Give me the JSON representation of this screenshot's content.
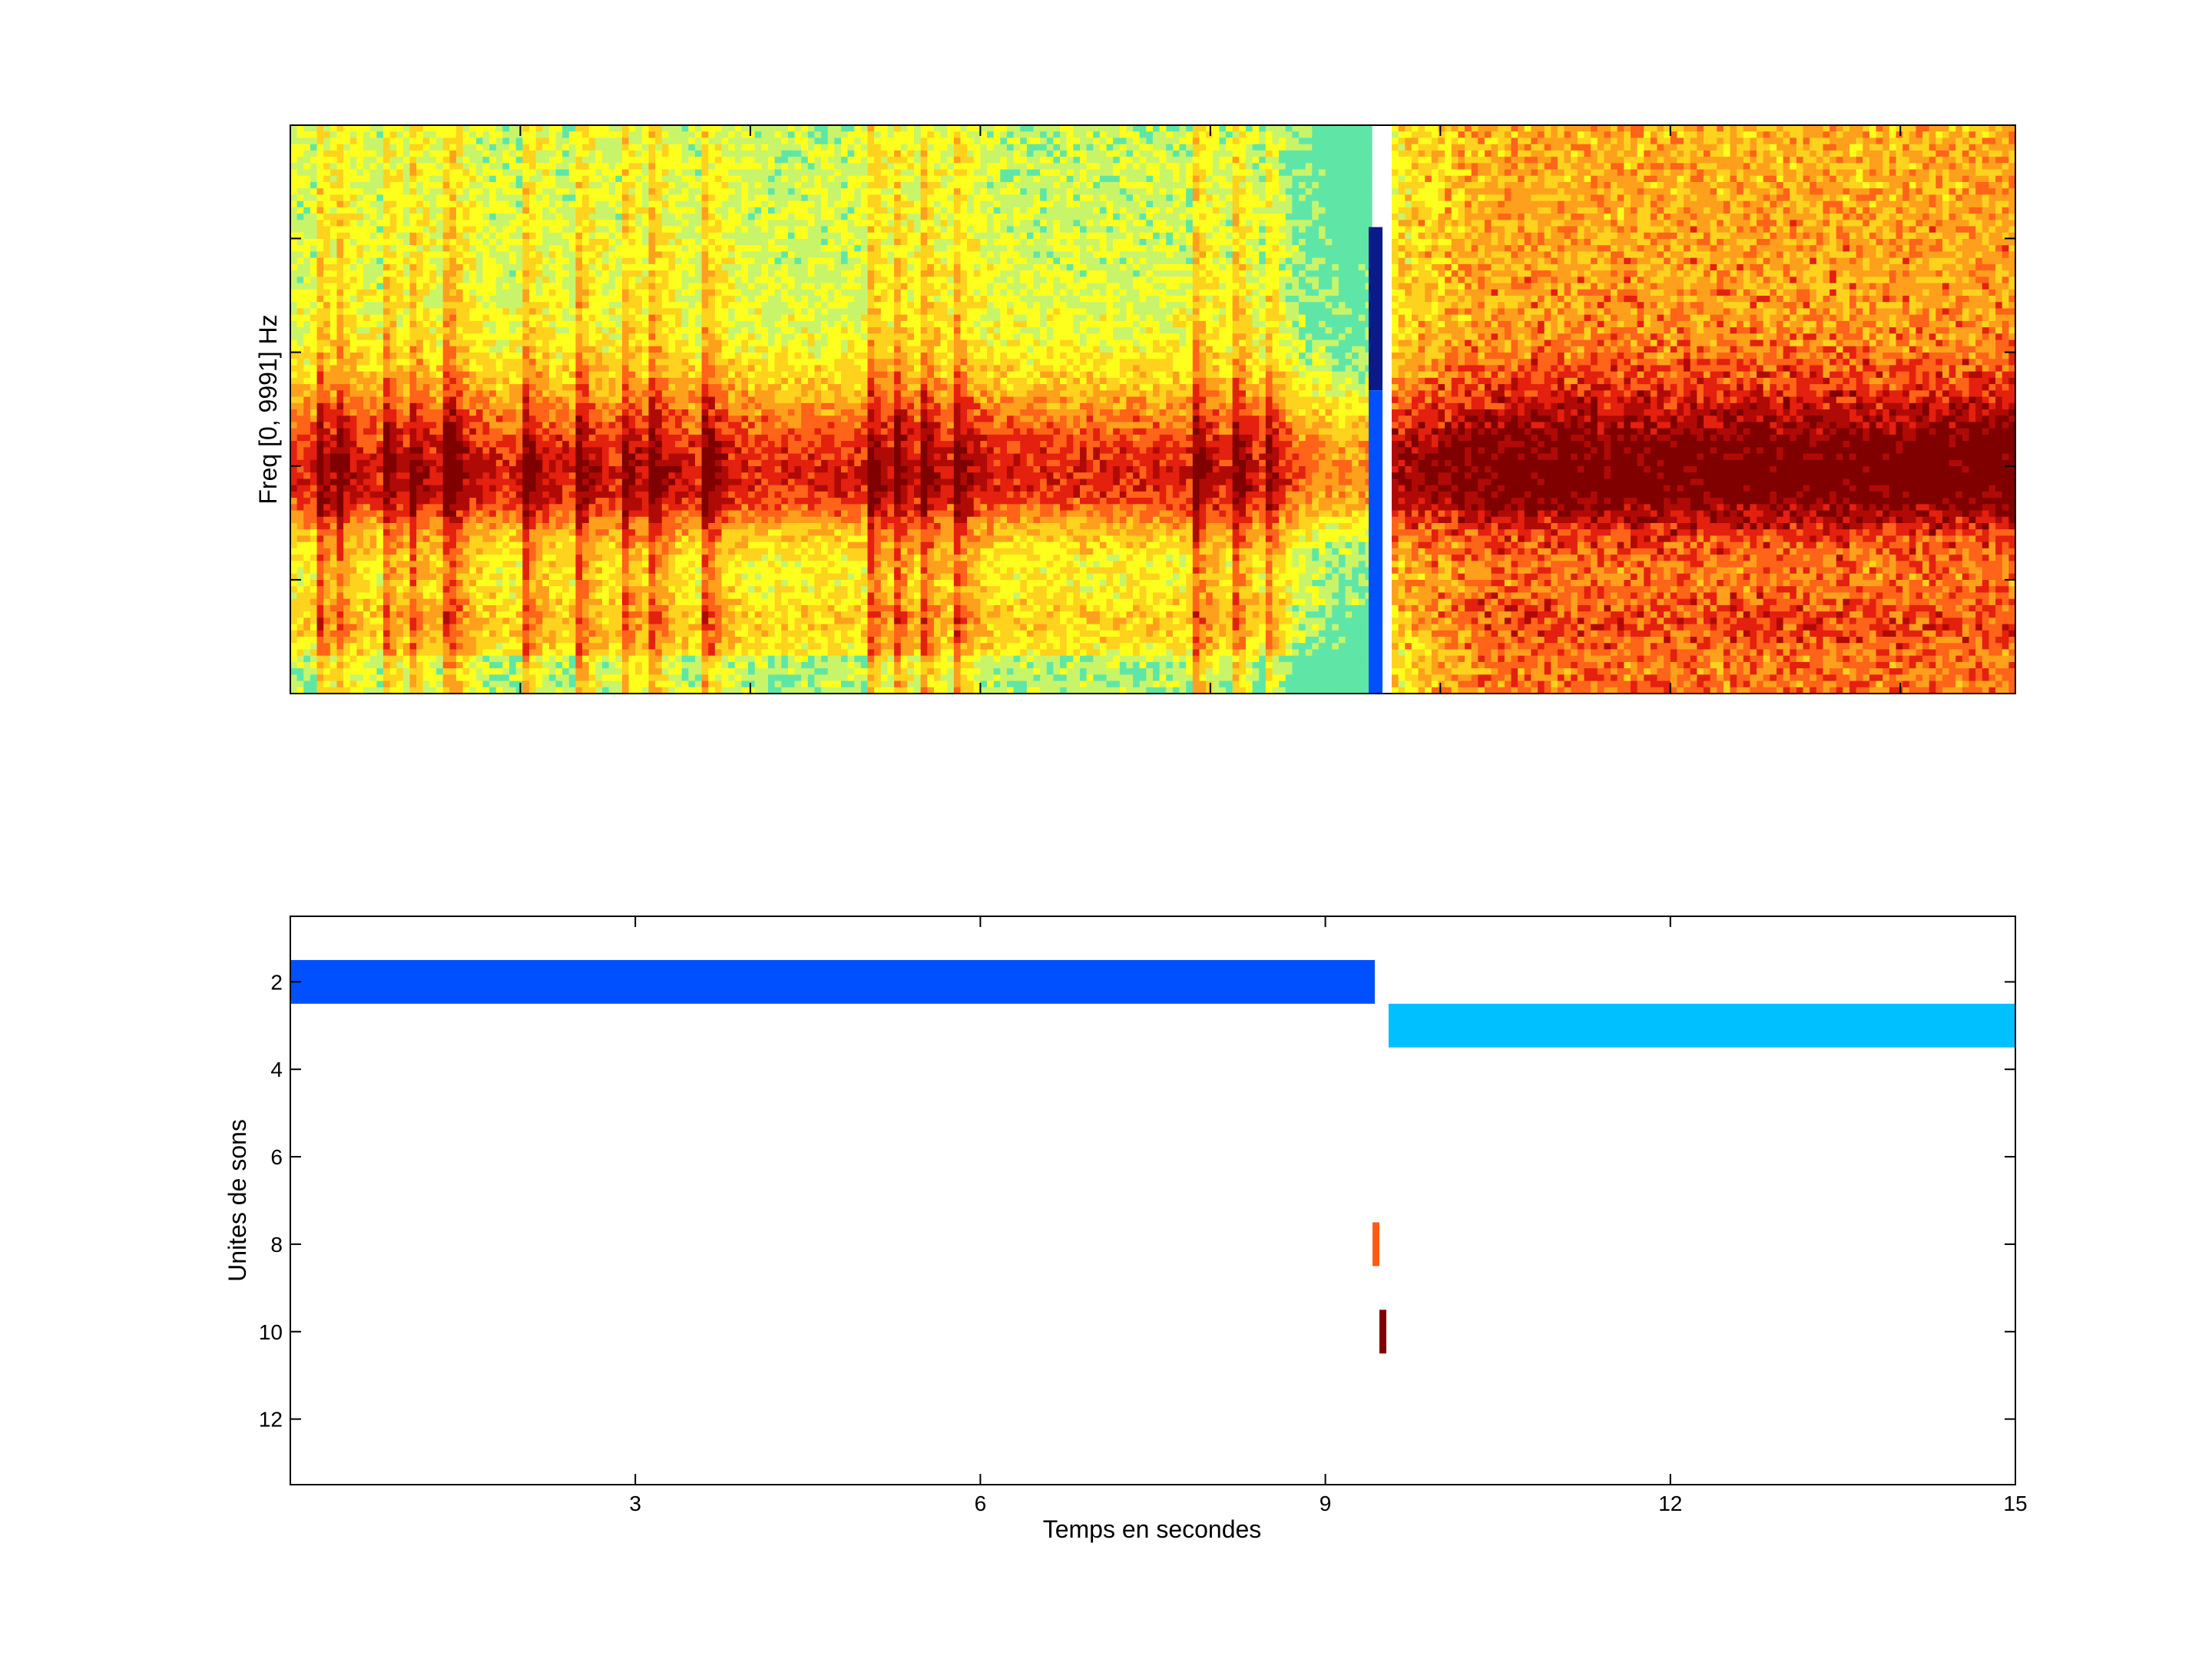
{
  "colors": {
    "background": "#ffffff",
    "axis": "#000000",
    "spectro_palette": [
      "#5fe6a6",
      "#c8f46a",
      "#ffff1e",
      "#ffd21e",
      "#ffa01c",
      "#ff6418",
      "#e4200e",
      "#b00a06",
      "#800000"
    ]
  },
  "chart_data": [
    {
      "type": "heatmap",
      "title": "",
      "xlabel": "",
      "ylabel": "Freq [0, 9991] Hz",
      "xlim": [
        0,
        15
      ],
      "ylim": [
        0,
        9991
      ],
      "xticks": [
        0,
        2,
        4,
        6,
        8,
        10,
        12,
        14
      ],
      "xtick_labels_shown": false,
      "ytick_labels_shown": false,
      "colormap": "jet",
      "energy_bands_hz": [
        1300,
        3550,
        4300
      ],
      "gap_seconds": [
        9.42,
        9.55
      ],
      "marker_column": {
        "x_seconds": 9.43,
        "color_top": "#0a1a8a",
        "color_bottom": "#0050ff",
        "top_freq_hz": 8200
      },
      "onsets_seconds": [
        0.25,
        0.42,
        0.82,
        1.05,
        1.38,
        1.42,
        2.05,
        2.52,
        2.9,
        3.17,
        3.63,
        5.06,
        5.28,
        5.52,
        5.81,
        7.88,
        8.25,
        8.52
      ],
      "dense_region_seconds": [
        9.6,
        15.0
      ]
    },
    {
      "type": "bar",
      "orientation": "horizontal-segments",
      "title": "",
      "xlabel": "Temps en secondes",
      "ylabel": "Unites de sons",
      "xlim": [
        0,
        15
      ],
      "ylim": [
        13.5,
        0.5
      ],
      "y_reversed": true,
      "xticks": [
        3,
        6,
        9,
        12,
        15
      ],
      "yticks": [
        2,
        4,
        6,
        8,
        10,
        12
      ],
      "segments": [
        {
          "unit": 2,
          "start": 0.0,
          "end": 9.43,
          "color": "#0050ff"
        },
        {
          "unit": 3,
          "start": 9.55,
          "end": 15.0,
          "color": "#00c0ff"
        },
        {
          "unit": 8,
          "start": 9.41,
          "end": 9.47,
          "color": "#ff5a14"
        },
        {
          "unit": 10,
          "start": 9.47,
          "end": 9.53,
          "color": "#800000"
        }
      ]
    }
  ]
}
